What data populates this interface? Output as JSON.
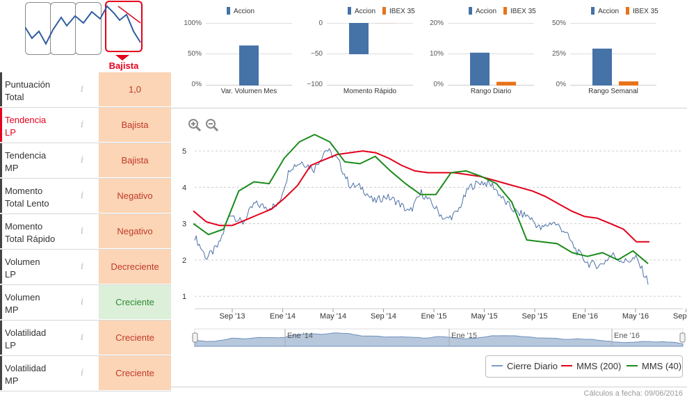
{
  "trend_label": "Bajista",
  "rows": [
    {
      "label1": "Puntuación",
      "label2": "Total",
      "value": "1,0",
      "tone": "orange",
      "red": false
    },
    {
      "label1": "Tendencia",
      "label2": "LP",
      "value": "Bajista",
      "tone": "orange",
      "red": true
    },
    {
      "label1": "Tendencia",
      "label2": "MP",
      "value": "Bajista",
      "tone": "orange",
      "red": false
    },
    {
      "label1": "Momento",
      "label2": "Total Lento",
      "value": "Negativo",
      "tone": "orange",
      "red": false
    },
    {
      "label1": "Momento",
      "label2": "Total Rápido",
      "value": "Negativo",
      "tone": "orange",
      "red": false
    },
    {
      "label1": "Volumen",
      "label2": "LP",
      "value": "Decreciente",
      "tone": "orange",
      "red": false
    },
    {
      "label1": "Volumen",
      "label2": "MP",
      "value": "Creciente",
      "tone": "green",
      "red": false
    },
    {
      "label1": "Volatilidad",
      "label2": "LP",
      "value": "Creciente",
      "tone": "orange",
      "red": false
    },
    {
      "label1": "Volatilidad",
      "label2": "MP",
      "value": "Creciente",
      "tone": "orange",
      "red": false
    }
  ],
  "info_glyph": "i",
  "minicharts": [
    {
      "legend": [
        "Accion"
      ],
      "ticks": [
        "100%",
        "50%",
        "0%"
      ],
      "caption": "Var. Volumen Mes",
      "values": [
        0.64
      ],
      "range": [
        0,
        1
      ]
    },
    {
      "legend": [
        "Accion",
        "IBEX 35"
      ],
      "ticks": [
        "0",
        "−50",
        "−100"
      ],
      "caption": "Momento Rápido",
      "values": [
        -0.5,
        0
      ],
      "range": [
        -100,
        0
      ]
    },
    {
      "legend": [
        "Accion",
        "IBEX 35"
      ],
      "ticks": [
        "20%",
        "10%",
        "0%"
      ],
      "caption": "Rango Diario",
      "values": [
        0.105,
        0.012
      ],
      "range": [
        0,
        0.2
      ]
    },
    {
      "legend": [
        "Accion",
        "IBEX 35"
      ],
      "ticks": [
        "50%",
        "25%",
        "0%"
      ],
      "caption": "Rango Semanal",
      "values": [
        0.295,
        0.033
      ],
      "range": [
        0,
        0.5
      ]
    }
  ],
  "colors": {
    "accion": "#4572a7",
    "ibex": "#e8731a",
    "price": "#4a6fa5",
    "mms200": "#e3001b",
    "mms40": "#1a8a1a"
  },
  "chart_data": {
    "type": "line",
    "y_ticks": [
      "5",
      "4",
      "3",
      "2",
      "1"
    ],
    "ylim": [
      1,
      5
    ],
    "x_ticks": [
      "Sep '13",
      "Ene '14",
      "May '14",
      "Sep '14",
      "Ene '15",
      "May '15",
      "Sep '15",
      "Ene '16",
      "May '16",
      "Sep '16"
    ],
    "navigator_labels": [
      "Ene '14",
      "Ene '15",
      "Ene '16"
    ],
    "series": [
      {
        "name": "Cierre Diario",
        "values": [
          2.65,
          2.05,
          2.4,
          3.3,
          3.0,
          3.55,
          3.45,
          3.5,
          4.55,
          4.7,
          4.5,
          5.05,
          4.75,
          4.05,
          4.0,
          3.6,
          3.75,
          3.6,
          3.3,
          3.85,
          3.5,
          3.1,
          3.3,
          4.0,
          4.15,
          4.05,
          3.6,
          3.3,
          3.2,
          2.85,
          3.05,
          2.8,
          2.25,
          1.9,
          1.85,
          2.15,
          1.95,
          2.05,
          1.4
        ]
      },
      {
        "name": "MMS (200)",
        "values": [
          3.35,
          3.05,
          2.95,
          2.95,
          3.1,
          3.25,
          3.4,
          3.7,
          4.05,
          4.6,
          4.75,
          4.9,
          4.95,
          5.0,
          4.95,
          4.8,
          4.6,
          4.45,
          4.4,
          4.4,
          4.4,
          4.35,
          4.3,
          4.2,
          4.1,
          4.0,
          3.9,
          3.75,
          3.55,
          3.35,
          3.2,
          3.15,
          3.0,
          2.85,
          2.5,
          2.5
        ]
      },
      {
        "name": "MMS (40)",
        "values": [
          3.0,
          2.7,
          2.85,
          3.9,
          4.15,
          4.1,
          4.8,
          5.25,
          5.45,
          5.25,
          4.7,
          4.65,
          4.85,
          4.45,
          4.1,
          3.8,
          3.8,
          4.4,
          4.45,
          4.3,
          4.1,
          3.6,
          2.55,
          2.5,
          2.45,
          2.2,
          2.1,
          2.2,
          2.0,
          2.25,
          1.9
        ]
      }
    ]
  },
  "legend_items": [
    "Cierre Diario",
    "MMS (200)",
    "MMS (40)"
  ],
  "footer": "Cálculos a fecha: 09/06/2016"
}
